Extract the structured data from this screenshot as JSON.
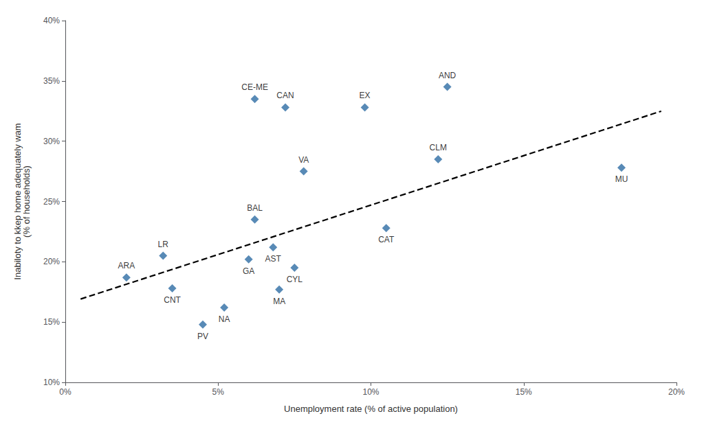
{
  "chart_data": {
    "type": "scatter",
    "xlabel": "Unemployment rate (% of active population)",
    "ylabel": "Inabiloty to kkep home adequately wam\n(% of households)",
    "xlim": [
      0,
      20
    ],
    "ylim": [
      10,
      40
    ],
    "xticks": [
      {
        "value": 0,
        "label": "0%"
      },
      {
        "value": 5,
        "label": "5%"
      },
      {
        "value": 10,
        "label": "10%"
      },
      {
        "value": 15,
        "label": "15%"
      },
      {
        "value": 20,
        "label": "20%"
      }
    ],
    "yticks": [
      {
        "value": 10,
        "label": "10%"
      },
      {
        "value": 15,
        "label": "15%"
      },
      {
        "value": 20,
        "label": "20%"
      },
      {
        "value": 25,
        "label": "25%"
      },
      {
        "value": 30,
        "label": "30%"
      },
      {
        "value": 35,
        "label": "35%"
      },
      {
        "value": 40,
        "label": "40%"
      }
    ],
    "grid": false,
    "series": [
      {
        "type": "scatter",
        "marker": "diamond",
        "color": "#2E6DA4",
        "labels": [
          "ARA",
          "LR",
          "CNT",
          "PV",
          "NA",
          "GA",
          "BAL",
          "AST",
          "CE-ME",
          "CAN",
          "MA",
          "CYL",
          "VA",
          "EX",
          "CAT",
          "CLM",
          "AND",
          "MU"
        ],
        "x": [
          2.0,
          3.2,
          3.5,
          4.5,
          5.2,
          6.0,
          6.2,
          6.8,
          6.2,
          7.2,
          7.0,
          7.5,
          7.8,
          9.8,
          10.5,
          12.2,
          12.5,
          18.2
        ],
        "values": [
          18.7,
          20.5,
          17.8,
          14.8,
          16.2,
          20.2,
          23.5,
          21.2,
          33.5,
          32.8,
          17.7,
          19.5,
          27.5,
          32.8,
          22.8,
          28.5,
          34.5,
          27.8
        ]
      },
      {
        "type": "line",
        "line_style": "dashed",
        "color": "#000000",
        "x": [
          0.5,
          19.5
        ],
        "values": [
          16.91,
          32.49
        ]
      }
    ]
  }
}
